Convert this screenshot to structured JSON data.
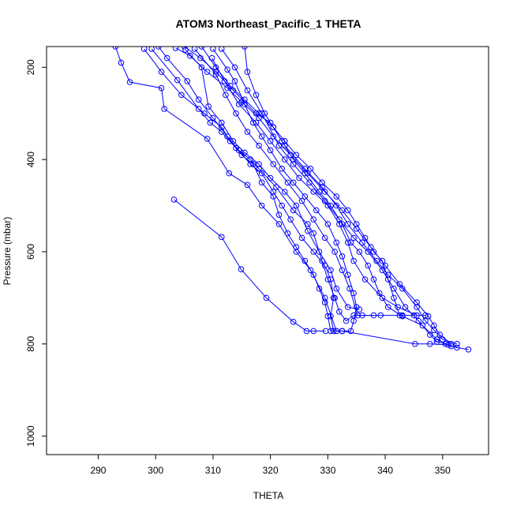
{
  "chart_data": {
    "type": "line",
    "title": "ATOM3 Northeast_Pacific_1 THETA",
    "xlabel": "THETA",
    "ylabel": "Pressure (mbar)",
    "xlim": [
      281,
      358
    ],
    "ylim": [
      1040,
      155
    ],
    "y_reversed": true,
    "grid": false,
    "legend": "none",
    "color": "#0000ff",
    "xticks": [
      290,
      300,
      310,
      320,
      330,
      340,
      350
    ],
    "yticks": [
      200,
      400,
      600,
      800,
      1000
    ],
    "series": [
      {
        "points": [
          [
            303.2,
            487
          ],
          [
            311.5,
            568
          ],
          [
            314.9,
            638
          ],
          [
            319.3,
            700
          ],
          [
            324.0,
            752
          ],
          [
            326.3,
            772
          ],
          [
            327.5,
            772
          ],
          [
            329.6,
            772
          ]
        ]
      },
      {
        "points": [
          [
            293.0,
            155
          ],
          [
            294.0,
            190
          ],
          [
            295.5,
            232
          ],
          [
            301.0,
            245
          ],
          [
            301.5,
            290
          ],
          [
            309.0,
            355
          ],
          [
            312.8,
            430
          ],
          [
            316.0,
            455
          ],
          [
            318.5,
            500
          ],
          [
            321.5,
            540
          ],
          [
            324.5,
            600
          ],
          [
            327.0,
            640
          ],
          [
            329.5,
            700
          ],
          [
            331.5,
            772
          ],
          [
            332.5,
            772
          ],
          [
            345.2,
            800
          ],
          [
            347.8,
            800
          ],
          [
            351.0,
            802
          ],
          [
            352.5,
            808
          ],
          [
            354.5,
            812
          ]
        ]
      },
      {
        "points": [
          [
            299.3,
            160
          ],
          [
            303.8,
            228
          ],
          [
            307.5,
            290
          ],
          [
            309.5,
            320
          ],
          [
            311.5,
            340
          ],
          [
            314.0,
            375
          ],
          [
            316.5,
            400
          ],
          [
            318.0,
            420
          ],
          [
            321.0,
            460
          ],
          [
            324.0,
            510
          ],
          [
            326.5,
            540
          ],
          [
            327.5,
            560
          ],
          [
            329.0,
            620
          ],
          [
            330.0,
            660
          ],
          [
            331.2,
            700
          ],
          [
            332.0,
            730
          ],
          [
            333.2,
            750
          ],
          [
            334.5,
            738
          ],
          [
            339.2,
            738
          ],
          [
            343.0,
            738
          ]
        ]
      },
      {
        "points": [
          [
            305.2,
            162
          ],
          [
            308.0,
            200
          ],
          [
            309.2,
            285
          ],
          [
            311.5,
            320
          ],
          [
            313.5,
            360
          ],
          [
            315.5,
            385
          ],
          [
            318.0,
            410
          ],
          [
            320.0,
            440
          ],
          [
            322.5,
            470
          ],
          [
            324.5,
            500
          ],
          [
            326.5,
            555
          ],
          [
            328.5,
            600
          ],
          [
            330.5,
            640
          ],
          [
            331.5,
            680
          ],
          [
            333.5,
            720
          ],
          [
            335.5,
            725
          ]
        ]
      },
      {
        "points": [
          [
            306.8,
            160
          ],
          [
            310.5,
            215
          ],
          [
            312.2,
            260
          ],
          [
            314.0,
            300
          ],
          [
            316.0,
            340
          ],
          [
            318.0,
            370
          ],
          [
            320.5,
            410
          ],
          [
            323.0,
            450
          ],
          [
            325.5,
            490
          ],
          [
            327.5,
            530
          ],
          [
            329.5,
            570
          ],
          [
            331.2,
            600
          ],
          [
            332.5,
            640
          ],
          [
            333.8,
            680
          ],
          [
            335.2,
            738
          ],
          [
            336.0,
            738
          ],
          [
            338.0,
            738
          ]
        ]
      },
      {
        "points": [
          [
            309.8,
            180
          ],
          [
            312.0,
            230
          ],
          [
            314.5,
            280
          ],
          [
            317.5,
            320
          ],
          [
            320.0,
            360
          ],
          [
            322.5,
            400
          ],
          [
            325.0,
            440
          ],
          [
            327.5,
            470
          ],
          [
            330.0,
            500
          ],
          [
            332.0,
            540
          ],
          [
            333.5,
            580
          ],
          [
            334.5,
            620
          ],
          [
            336.5,
            660
          ],
          [
            339.5,
            700
          ],
          [
            342.2,
            720
          ],
          [
            345.5,
            738
          ],
          [
            347.0,
            738
          ]
        ]
      },
      {
        "points": [
          [
            311.5,
            160
          ],
          [
            313.8,
            200
          ],
          [
            316.0,
            250
          ],
          [
            318.5,
            300
          ],
          [
            321.5,
            370
          ],
          [
            324.0,
            410
          ],
          [
            326.8,
            450
          ],
          [
            329.5,
            490
          ],
          [
            332.0,
            530
          ],
          [
            334.5,
            570
          ],
          [
            337.0,
            600
          ],
          [
            339.5,
            640
          ],
          [
            341.5,
            680
          ],
          [
            343.5,
            720
          ],
          [
            345.8,
            750
          ],
          [
            347.8,
            780
          ],
          [
            349.0,
            795
          ],
          [
            350.5,
            800
          ]
        ]
      },
      {
        "points": [
          [
            305.0,
            155
          ],
          [
            307.8,
            180
          ],
          [
            310.5,
            210
          ],
          [
            313.5,
            250
          ],
          [
            317.5,
            300
          ],
          [
            320.0,
            320
          ],
          [
            322.5,
            370
          ],
          [
            326.0,
            420
          ],
          [
            329.0,
            460
          ],
          [
            331.5,
            500
          ],
          [
            333.5,
            540
          ],
          [
            336.0,
            580
          ],
          [
            338.5,
            620
          ],
          [
            340.5,
            650
          ],
          [
            343.0,
            680
          ],
          [
            345.5,
            720
          ],
          [
            347.0,
            750
          ],
          [
            348.5,
            770
          ],
          [
            350.0,
            790
          ],
          [
            352.5,
            800
          ]
        ]
      },
      {
        "points": [
          [
            303.5,
            158
          ],
          [
            306.0,
            175
          ],
          [
            309.0,
            210
          ],
          [
            312.5,
            245
          ],
          [
            315.0,
            275
          ],
          [
            318.0,
            310
          ],
          [
            320.5,
            350
          ],
          [
            323.5,
            390
          ],
          [
            326.5,
            430
          ],
          [
            329.5,
            470
          ],
          [
            332.5,
            510
          ],
          [
            335.0,
            550
          ],
          [
            337.5,
            590
          ],
          [
            340.0,
            630
          ],
          [
            342.5,
            670
          ],
          [
            345.5,
            710
          ],
          [
            347.5,
            740
          ],
          [
            348.5,
            760
          ],
          [
            349.5,
            780
          ],
          [
            351.5,
            800
          ]
        ]
      },
      {
        "points": [
          [
            300.5,
            155
          ],
          [
            302.0,
            180
          ],
          [
            305.5,
            230
          ],
          [
            307.5,
            270
          ],
          [
            310.0,
            310
          ],
          [
            312.5,
            350
          ],
          [
            314.5,
            380
          ],
          [
            316.5,
            410
          ],
          [
            318.5,
            430
          ],
          [
            320.5,
            470
          ],
          [
            322.0,
            500
          ],
          [
            323.5,
            530
          ],
          [
            325.5,
            570
          ],
          [
            327.5,
            600
          ],
          [
            329.5,
            630
          ],
          [
            330.5,
            660
          ],
          [
            331.0,
            700
          ],
          [
            330.5,
            740
          ],
          [
            331.0,
            772
          ],
          [
            332.5,
            772
          ]
        ]
      },
      {
        "points": [
          [
            308.0,
            155
          ],
          [
            310.5,
            200
          ],
          [
            313.0,
            240
          ],
          [
            315.5,
            270
          ],
          [
            318.0,
            300
          ],
          [
            320.5,
            330
          ],
          [
            322.5,
            360
          ],
          [
            324.5,
            390
          ],
          [
            327.0,
            420
          ],
          [
            329.0,
            450
          ],
          [
            331.5,
            480
          ],
          [
            333.5,
            510
          ],
          [
            335.0,
            540
          ],
          [
            336.5,
            570
          ],
          [
            338.0,
            600
          ],
          [
            339.5,
            620
          ],
          [
            340.5,
            660
          ],
          [
            341.5,
            700
          ],
          [
            342.5,
            738
          ],
          [
            345.0,
            738
          ]
        ]
      },
      {
        "points": [
          [
            298.0,
            160
          ],
          [
            301.0,
            210
          ],
          [
            304.5,
            260
          ],
          [
            308.5,
            300
          ],
          [
            311.5,
            330
          ],
          [
            313.0,
            360
          ],
          [
            315.0,
            390
          ],
          [
            317.0,
            410
          ],
          [
            318.5,
            450
          ],
          [
            320.5,
            480
          ],
          [
            321.5,
            520
          ],
          [
            323.0,
            560
          ],
          [
            324.5,
            590
          ],
          [
            326.0,
            620
          ],
          [
            327.5,
            650
          ],
          [
            328.5,
            680
          ],
          [
            329.5,
            710
          ],
          [
            330.0,
            740
          ],
          [
            330.5,
            772
          ],
          [
            331.5,
            772
          ]
        ]
      },
      {
        "points": [
          [
            315.5,
            155
          ],
          [
            316.0,
            210
          ],
          [
            317.5,
            260
          ],
          [
            319.0,
            300
          ],
          [
            320.5,
            330
          ],
          [
            322.0,
            360
          ],
          [
            324.0,
            400
          ],
          [
            326.0,
            430
          ],
          [
            328.5,
            470
          ],
          [
            330.5,
            500
          ],
          [
            332.5,
            540
          ],
          [
            334.0,
            580
          ],
          [
            335.5,
            600
          ],
          [
            337.0,
            630
          ],
          [
            338.0,
            660
          ],
          [
            339.0,
            690
          ],
          [
            340.5,
            720
          ],
          [
            343.0,
            740
          ],
          [
            346.5,
            760
          ],
          [
            349.0,
            790
          ],
          [
            351.5,
            805
          ]
        ]
      },
      {
        "points": [
          [
            310.0,
            160
          ],
          [
            312.5,
            205
          ],
          [
            313.8,
            230
          ],
          [
            315.5,
            280
          ],
          [
            317.0,
            320
          ],
          [
            318.5,
            350
          ],
          [
            320.0,
            380
          ],
          [
            322.0,
            420
          ],
          [
            324.0,
            450
          ],
          [
            326.0,
            480
          ],
          [
            328.0,
            510
          ],
          [
            330.0,
            540
          ],
          [
            331.5,
            580
          ],
          [
            332.5,
            610
          ],
          [
            333.5,
            650
          ],
          [
            334.5,
            690
          ],
          [
            335.0,
            720
          ],
          [
            334.5,
            750
          ],
          [
            334.0,
            772
          ],
          [
            332.5,
            772
          ]
        ]
      }
    ]
  }
}
